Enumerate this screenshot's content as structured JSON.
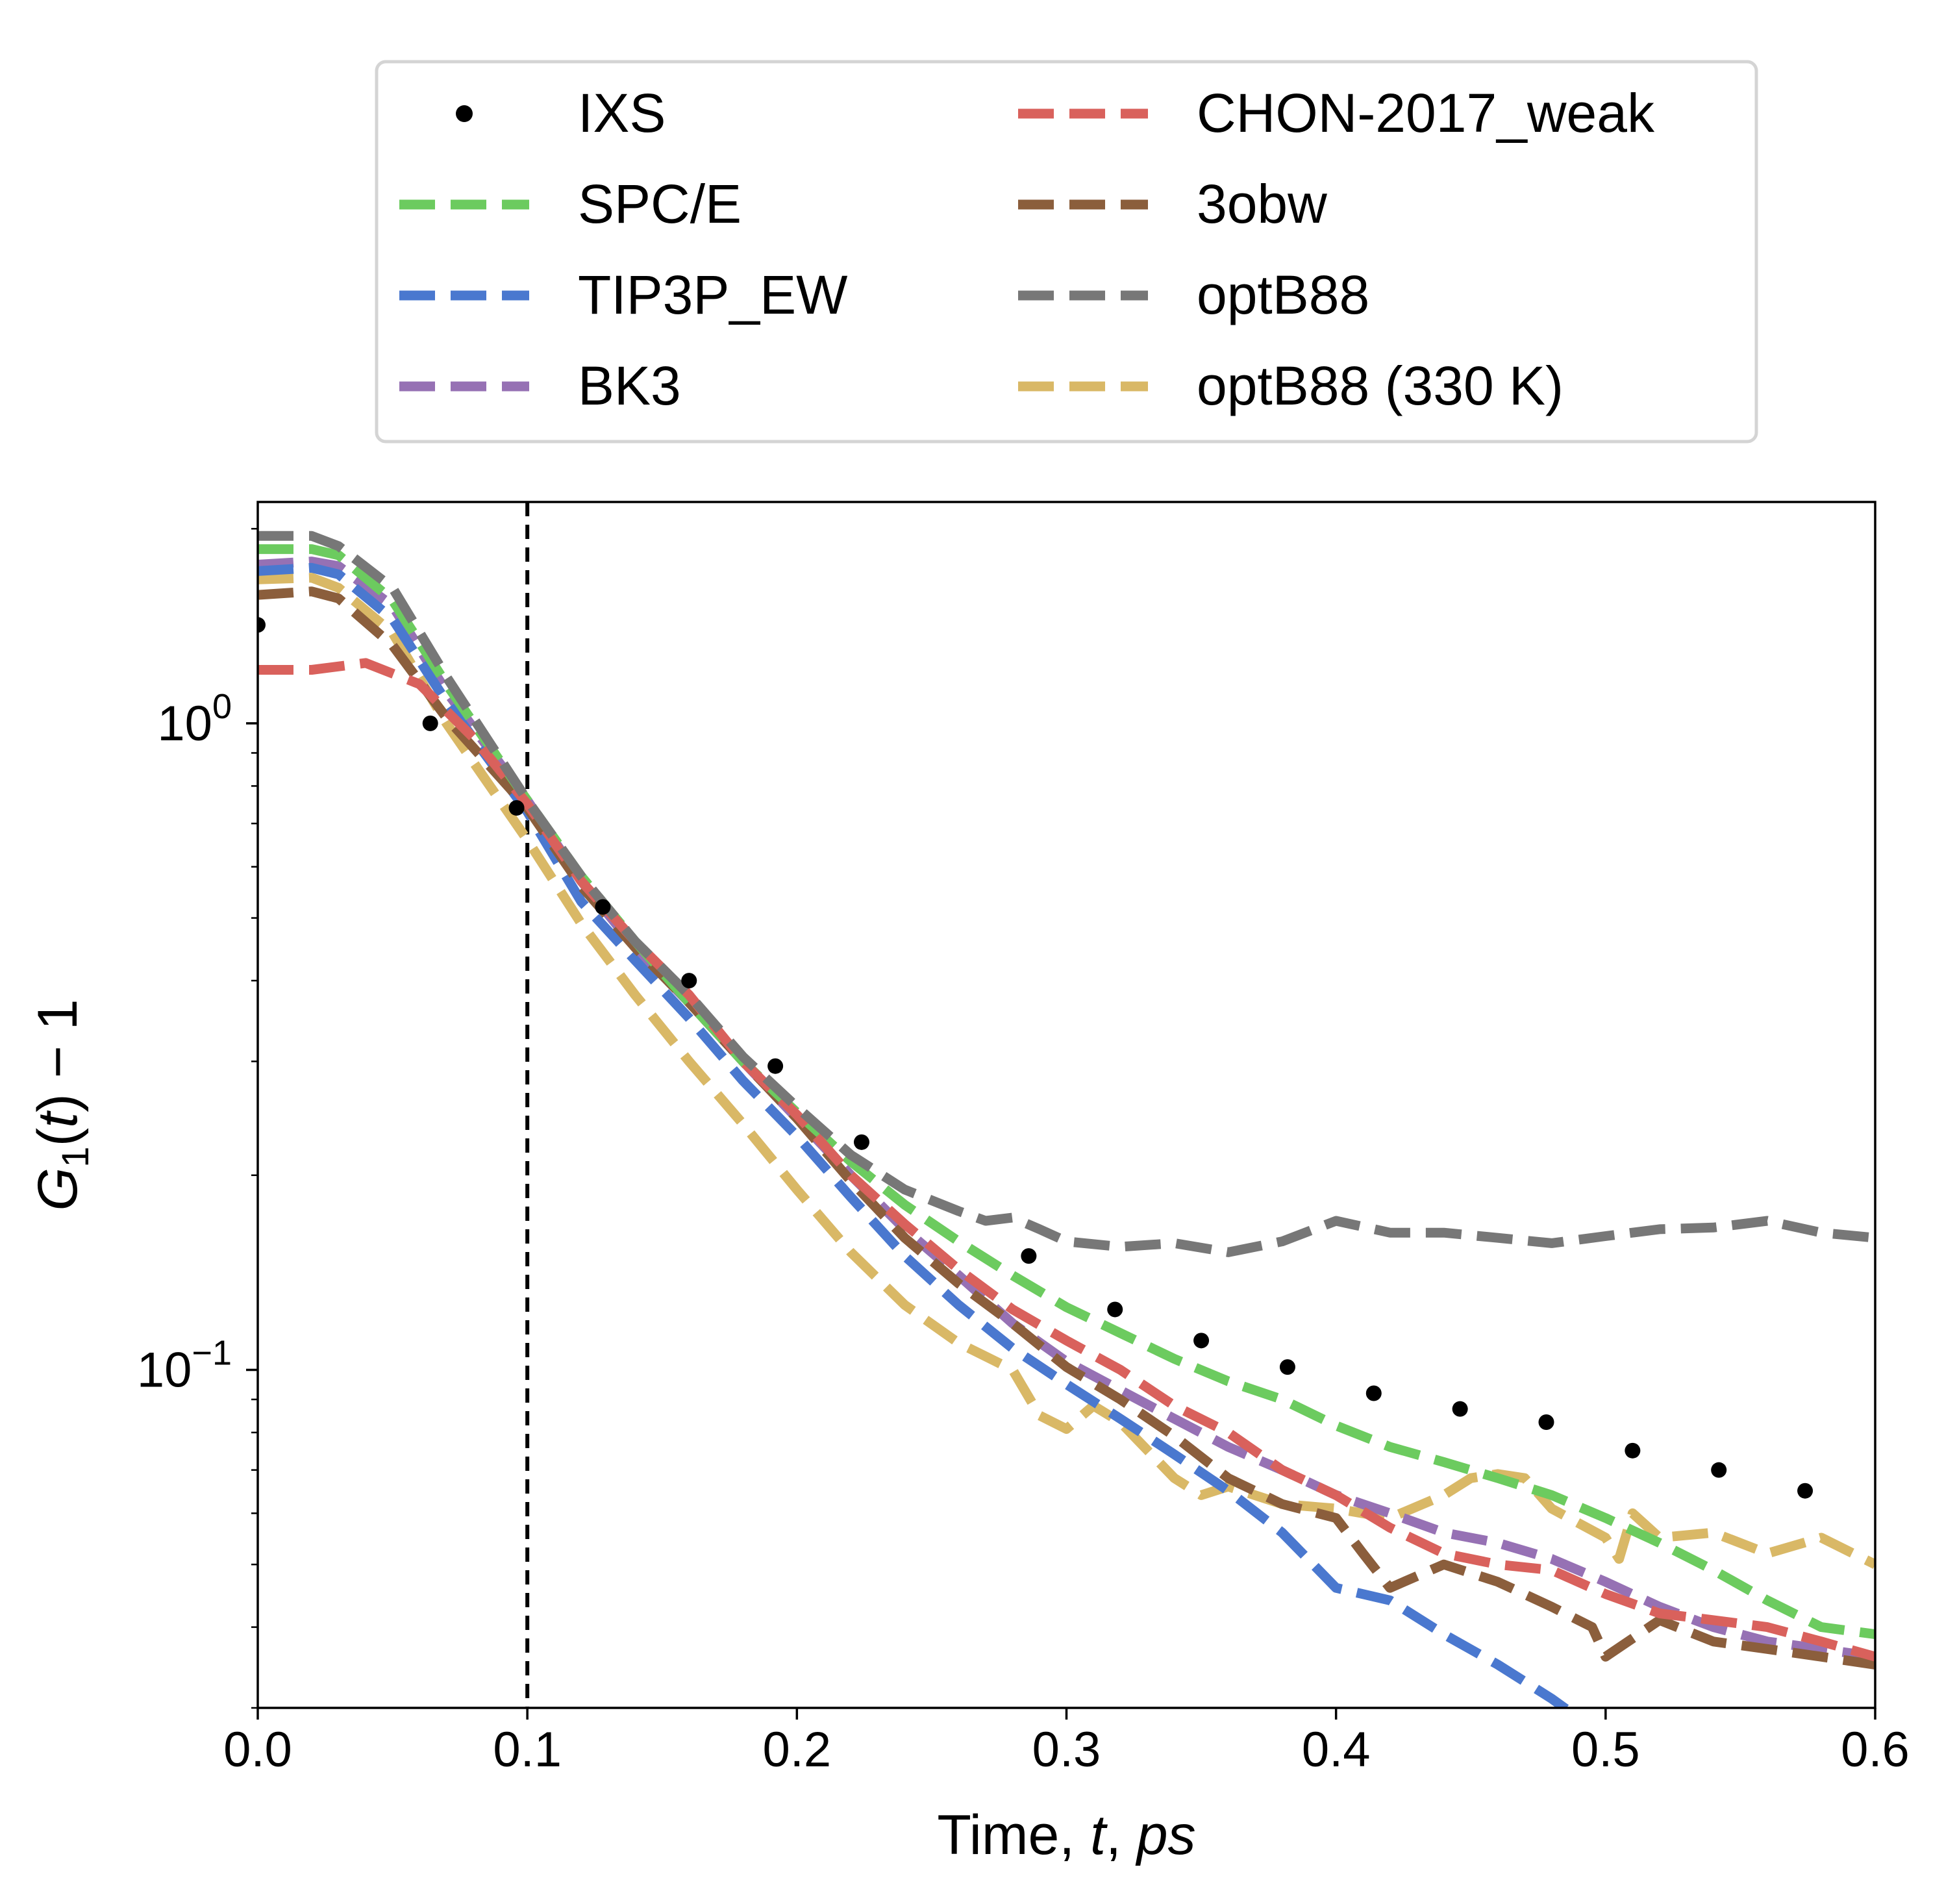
{
  "chart_data": {
    "type": "line",
    "xlabel_parts": [
      "Time, ",
      "t",
      ", ",
      "ps"
    ],
    "ylabel_parts": [
      "G",
      "1",
      "(",
      "t",
      ") − 1"
    ],
    "xlim": [
      0.0,
      0.6
    ],
    "ylim": [
      0.03,
      2.2
    ],
    "yscale": "log",
    "grid": false,
    "legend_placement": "above-plot",
    "x_ticks": [
      "0.0",
      "0.1",
      "0.2",
      "0.3",
      "0.4",
      "0.5",
      "0.6"
    ],
    "y_ticks": [
      {
        "value": 1.0,
        "base": "10",
        "exp": "0"
      },
      {
        "value": 0.1,
        "base": "10",
        "exp": "−1"
      }
    ],
    "vline": {
      "x": 0.1,
      "color": "#000000",
      "style": "dashed"
    },
    "series": [
      {
        "name": "IXS",
        "color": "#000000",
        "style": "points",
        "x": [
          0.0,
          0.064,
          0.096,
          0.128,
          0.16,
          0.192,
          0.224,
          0.286,
          0.318,
          0.35,
          0.382,
          0.414,
          0.446,
          0.478,
          0.51,
          0.542,
          0.574
        ],
        "y": [
          1.42,
          1.0,
          0.74,
          0.52,
          0.4,
          0.295,
          0.225,
          0.15,
          0.124,
          0.111,
          0.101,
          0.092,
          0.087,
          0.083,
          0.075,
          0.07,
          0.065
        ]
      },
      {
        "name": "CHON-2017_weak",
        "color": "#d9615c",
        "style": "dashed",
        "x": [
          0,
          0.02,
          0.04,
          0.06,
          0.08,
          0.1,
          0.12,
          0.14,
          0.16,
          0.18,
          0.2,
          0.22,
          0.24,
          0.26,
          0.28,
          0.3,
          0.32,
          0.34,
          0.36,
          0.38,
          0.4,
          0.42,
          0.44,
          0.46,
          0.48,
          0.5,
          0.52,
          0.54,
          0.56,
          0.58,
          0.6
        ],
        "y": [
          1.21,
          1.21,
          1.24,
          1.15,
          0.95,
          0.75,
          0.57,
          0.46,
          0.38,
          0.3,
          0.248,
          0.2,
          0.168,
          0.143,
          0.124,
          0.111,
          0.1,
          0.088,
          0.08,
          0.07,
          0.064,
          0.057,
          0.052,
          0.05,
          0.049,
          0.045,
          0.042,
          0.041,
          0.04,
          0.038,
          0.036
        ]
      },
      {
        "name": "SPC/E",
        "color": "#6ccb5f",
        "style": "dashed",
        "x": [
          0,
          0.02,
          0.03,
          0.05,
          0.07,
          0.1,
          0.12,
          0.14,
          0.16,
          0.18,
          0.2,
          0.22,
          0.24,
          0.26,
          0.28,
          0.3,
          0.32,
          0.34,
          0.36,
          0.38,
          0.4,
          0.42,
          0.44,
          0.46,
          0.48,
          0.5,
          0.52,
          0.54,
          0.56,
          0.58,
          0.6
        ],
        "y": [
          1.86,
          1.86,
          1.82,
          1.55,
          1.15,
          0.76,
          0.58,
          0.46,
          0.37,
          0.3,
          0.25,
          0.21,
          0.18,
          0.158,
          0.14,
          0.125,
          0.114,
          0.104,
          0.096,
          0.09,
          0.082,
          0.076,
          0.072,
          0.068,
          0.064,
          0.059,
          0.054,
          0.049,
          0.044,
          0.04,
          0.039
        ]
      },
      {
        "name": "3obw",
        "color": "#8b5e3c",
        "style": "dashed",
        "x": [
          0,
          0.02,
          0.03,
          0.05,
          0.07,
          0.1,
          0.12,
          0.14,
          0.16,
          0.18,
          0.2,
          0.22,
          0.24,
          0.26,
          0.28,
          0.3,
          0.32,
          0.34,
          0.36,
          0.38,
          0.4,
          0.41,
          0.42,
          0.44,
          0.46,
          0.48,
          0.495,
          0.5,
          0.52,
          0.54,
          0.56,
          0.58,
          0.6
        ],
        "y": [
          1.58,
          1.6,
          1.56,
          1.32,
          1.02,
          0.74,
          0.56,
          0.45,
          0.37,
          0.3,
          0.245,
          0.196,
          0.16,
          0.136,
          0.118,
          0.101,
          0.09,
          0.079,
          0.068,
          0.062,
          0.059,
          0.052,
          0.046,
          0.05,
          0.047,
          0.043,
          0.04,
          0.036,
          0.041,
          0.038,
          0.037,
          0.036,
          0.035
        ]
      },
      {
        "name": "TIP3P_EW",
        "color": "#4a78cf",
        "style": "dashed",
        "x": [
          0,
          0.02,
          0.03,
          0.05,
          0.07,
          0.1,
          0.12,
          0.14,
          0.16,
          0.18,
          0.2,
          0.22,
          0.24,
          0.26,
          0.28,
          0.3,
          0.32,
          0.34,
          0.36,
          0.38,
          0.4,
          0.42,
          0.44,
          0.46,
          0.48,
          0.5
        ],
        "y": [
          1.72,
          1.74,
          1.7,
          1.45,
          1.08,
          0.73,
          0.53,
          0.43,
          0.35,
          0.28,
          0.23,
          0.185,
          0.15,
          0.126,
          0.108,
          0.095,
          0.084,
          0.074,
          0.065,
          0.056,
          0.046,
          0.044,
          0.039,
          0.035,
          0.031,
          0.027
        ]
      },
      {
        "name": "optB88",
        "color": "#777777",
        "style": "dashed",
        "x": [
          0,
          0.02,
          0.03,
          0.05,
          0.07,
          0.1,
          0.12,
          0.14,
          0.16,
          0.18,
          0.2,
          0.22,
          0.24,
          0.26,
          0.27,
          0.28,
          0.29,
          0.3,
          0.32,
          0.34,
          0.36,
          0.38,
          0.4,
          0.42,
          0.44,
          0.46,
          0.48,
          0.5,
          0.52,
          0.54,
          0.56,
          0.58,
          0.6
        ],
        "y": [
          1.95,
          1.95,
          1.88,
          1.62,
          1.18,
          0.76,
          0.58,
          0.46,
          0.38,
          0.305,
          0.255,
          0.215,
          0.19,
          0.176,
          0.17,
          0.172,
          0.165,
          0.158,
          0.155,
          0.157,
          0.152,
          0.158,
          0.17,
          0.163,
          0.163,
          0.16,
          0.157,
          0.161,
          0.165,
          0.166,
          0.17,
          0.163,
          0.16
        ]
      },
      {
        "name": "BK3",
        "color": "#9671b4",
        "style": "dashed",
        "x": [
          0,
          0.02,
          0.03,
          0.05,
          0.07,
          0.1,
          0.12,
          0.14,
          0.16,
          0.18,
          0.2,
          0.22,
          0.24,
          0.26,
          0.28,
          0.3,
          0.32,
          0.34,
          0.36,
          0.38,
          0.4,
          0.42,
          0.44,
          0.46,
          0.48,
          0.5,
          0.52,
          0.54,
          0.56,
          0.58,
          0.6
        ],
        "y": [
          1.76,
          1.78,
          1.75,
          1.52,
          1.12,
          0.76,
          0.57,
          0.45,
          0.37,
          0.3,
          0.245,
          0.2,
          0.165,
          0.14,
          0.118,
          0.103,
          0.093,
          0.084,
          0.076,
          0.07,
          0.064,
          0.06,
          0.056,
          0.054,
          0.051,
          0.047,
          0.043,
          0.04,
          0.038,
          0.037,
          0.036
        ]
      },
      {
        "name": "optB88 (330 K)",
        "color": "#d9b866",
        "style": "dashed",
        "x": [
          0,
          0.02,
          0.03,
          0.05,
          0.07,
          0.1,
          0.12,
          0.14,
          0.16,
          0.18,
          0.2,
          0.22,
          0.24,
          0.26,
          0.28,
          0.29,
          0.3,
          0.31,
          0.32,
          0.34,
          0.35,
          0.36,
          0.38,
          0.4,
          0.42,
          0.44,
          0.45,
          0.46,
          0.47,
          0.48,
          0.5,
          0.505,
          0.51,
          0.52,
          0.54,
          0.56,
          0.58,
          0.6
        ],
        "y": [
          1.67,
          1.68,
          1.62,
          1.38,
          1.0,
          0.66,
          0.49,
          0.38,
          0.3,
          0.24,
          0.19,
          0.152,
          0.126,
          0.11,
          0.1,
          0.085,
          0.081,
          0.088,
          0.083,
          0.068,
          0.064,
          0.066,
          0.062,
          0.061,
          0.059,
          0.064,
          0.068,
          0.069,
          0.068,
          0.061,
          0.055,
          0.051,
          0.06,
          0.055,
          0.056,
          0.052,
          0.055,
          0.05
        ]
      }
    ]
  },
  "legend": {
    "entries": [
      {
        "label": "IXS",
        "series": 0
      },
      {
        "label": "SPC/E",
        "series": 2
      },
      {
        "label": "TIP3P_EW",
        "series": 4
      },
      {
        "label": "BK3",
        "series": 6
      },
      {
        "label": "CHON-2017_weak",
        "series": 1
      },
      {
        "label": "3obw",
        "series": 3
      },
      {
        "label": "optB88",
        "series": 5
      },
      {
        "label": "optB88 (330 K)",
        "series": 7
      }
    ]
  }
}
